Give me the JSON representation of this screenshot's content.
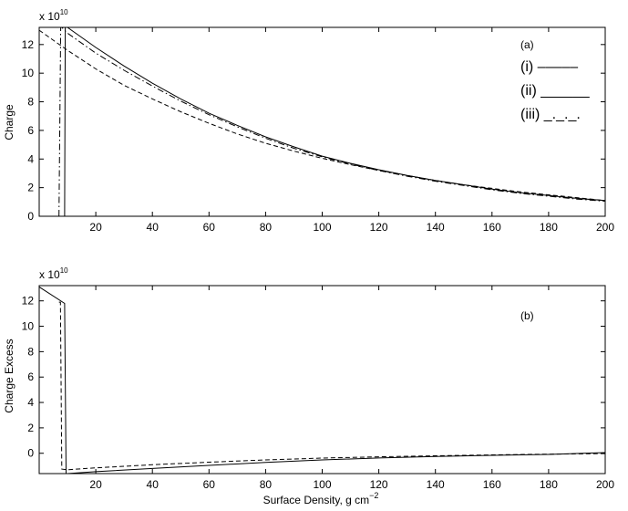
{
  "chart_data": [
    {
      "type": "line",
      "panel_label": "(a)",
      "ylabel": "Charge",
      "xlabel": "",
      "y_multiplier_label": "x 10",
      "y_multiplier_exponent": "10",
      "xlim": [
        0,
        200
      ],
      "ylim": [
        0,
        13.2
      ],
      "xticks": [
        20,
        40,
        60,
        80,
        100,
        120,
        140,
        160,
        180,
        200
      ],
      "yticks": [
        0,
        2,
        4,
        6,
        8,
        10,
        12
      ],
      "grid": false,
      "legend_position": "top-right",
      "series": [
        {
          "name": "(i)",
          "legend_sample": "–––––",
          "dash": "dashed",
          "x": [
            0,
            10,
            20,
            30,
            40,
            50,
            60,
            70,
            80,
            90,
            100,
            110,
            120,
            130,
            140,
            150,
            160,
            170,
            180,
            190,
            200
          ],
          "y": [
            13.0,
            11.6,
            10.3,
            9.15,
            8.2,
            7.3,
            6.5,
            5.75,
            5.1,
            4.55,
            4.05,
            3.6,
            3.2,
            2.85,
            2.5,
            2.2,
            1.95,
            1.7,
            1.5,
            1.3,
            1.1
          ]
        },
        {
          "name": "(ii)",
          "legend_sample": "______",
          "dash": "solid",
          "x": [
            9,
            9.2,
            10,
            20,
            30,
            40,
            50,
            60,
            70,
            80,
            90,
            100,
            110,
            120,
            130,
            140,
            150,
            160,
            170,
            180,
            190,
            200
          ],
          "y": [
            0,
            13.2,
            13.2,
            11.8,
            10.5,
            9.3,
            8.2,
            7.2,
            6.35,
            5.55,
            4.85,
            4.2,
            3.7,
            3.25,
            2.85,
            2.5,
            2.2,
            1.9,
            1.65,
            1.45,
            1.25,
            1.1
          ]
        },
        {
          "name": "(iii)",
          "legend_sample": "_._._.",
          "dash": "dashdot",
          "x": [
            7,
            7.6,
            8,
            10,
            20,
            30,
            40,
            50,
            60,
            70,
            80,
            90,
            100,
            110,
            120,
            130,
            140,
            150,
            160,
            170,
            180,
            190,
            200
          ],
          "y": [
            0,
            13.2,
            13.2,
            12.8,
            11.4,
            10.2,
            9.1,
            8.05,
            7.1,
            6.25,
            5.45,
            4.75,
            4.15,
            3.65,
            3.2,
            2.8,
            2.45,
            2.15,
            1.85,
            1.6,
            1.4,
            1.2,
            1.05
          ]
        }
      ]
    },
    {
      "type": "line",
      "panel_label": "(b)",
      "ylabel": "Charge Excess",
      "xlabel": "Surface Density, g cm",
      "xlabel_exponent": "−2",
      "y_multiplier_label": "x 10",
      "y_multiplier_exponent": "10",
      "xlim": [
        0,
        200
      ],
      "ylim": [
        -1.6,
        13.2
      ],
      "xticks": [
        20,
        40,
        60,
        80,
        100,
        120,
        140,
        160,
        180,
        200
      ],
      "yticks": [
        0,
        2,
        4,
        6,
        8,
        10,
        12
      ],
      "grid": false,
      "series": [
        {
          "dash": "solid",
          "x": [
            0,
            9,
            9.5,
            10,
            20,
            40,
            60,
            80,
            100,
            120,
            140,
            160,
            180,
            200
          ],
          "y": [
            13.1,
            11.8,
            -1.6,
            -1.6,
            -1.45,
            -1.2,
            -0.95,
            -0.72,
            -0.52,
            -0.37,
            -0.25,
            -0.16,
            -0.09,
            0.05
          ]
        },
        {
          "dash": "dashed",
          "x": [
            7,
            7.5,
            8,
            10,
            20,
            40,
            60,
            80,
            100,
            120,
            140,
            160,
            180,
            200
          ],
          "y": [
            11.9,
            11.9,
            -1.25,
            -1.3,
            -1.15,
            -0.9,
            -0.7,
            -0.52,
            -0.38,
            -0.28,
            -0.2,
            -0.13,
            -0.07,
            -0.03
          ]
        }
      ]
    }
  ]
}
